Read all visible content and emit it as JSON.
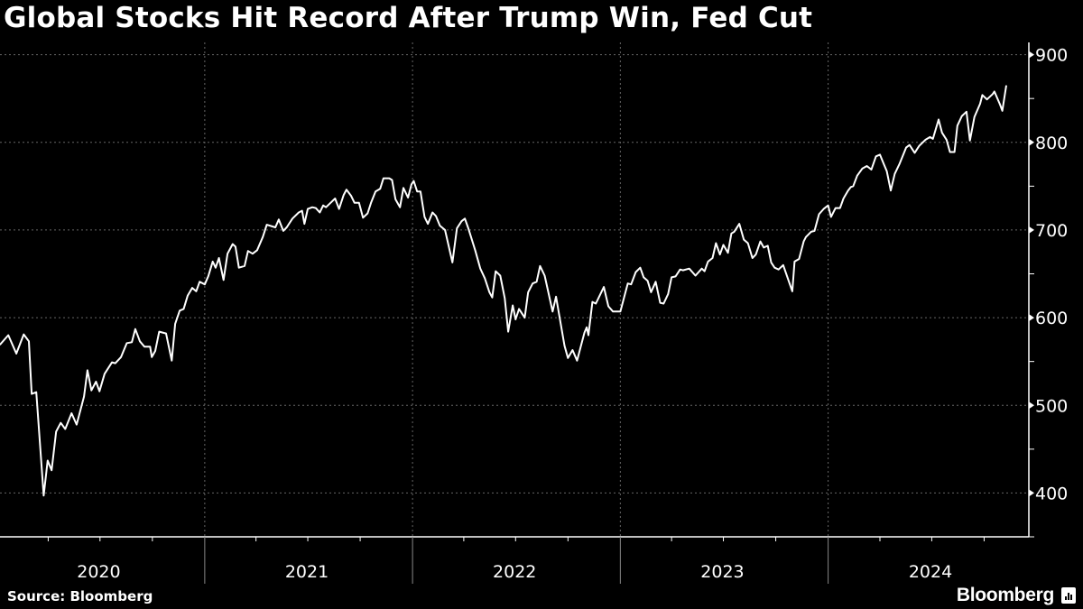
{
  "chart_data": {
    "type": "line",
    "title": "Global Stocks Hit Record After Trump Win, Fed Cut",
    "source": "Source: Bloomberg",
    "brand": "Bloomberg",
    "line_color": "#ffffff",
    "background_color": "#000000",
    "grid": true,
    "y_axis_position": "right",
    "ylim": [
      350,
      914
    ],
    "y_ticks": [
      400,
      500,
      600,
      700,
      800,
      900
    ],
    "x_tick_labels": [
      "2020",
      "2021",
      "2022",
      "2023",
      "2024"
    ],
    "xlim": [
      "2020-01-01",
      "2024-12-31"
    ],
    "series": [
      {
        "points": [
          [
            "2020-01-07",
            569
          ],
          [
            "2020-01-22",
            580
          ],
          [
            "2020-02-05",
            559
          ],
          [
            "2020-02-18",
            581
          ],
          [
            "2020-02-27",
            573
          ],
          [
            "2020-03-03",
            513
          ],
          [
            "2020-03-11",
            515
          ],
          [
            "2020-03-24",
            397
          ],
          [
            "2020-03-31",
            437
          ],
          [
            "2020-04-07",
            426
          ],
          [
            "2020-04-15",
            470
          ],
          [
            "2020-04-23",
            480
          ],
          [
            "2020-05-01",
            473
          ],
          [
            "2020-05-12",
            491
          ],
          [
            "2020-05-21",
            478
          ],
          [
            "2020-06-03",
            510
          ],
          [
            "2020-06-09",
            540
          ],
          [
            "2020-06-16",
            517
          ],
          [
            "2020-06-24",
            527
          ],
          [
            "2020-06-30",
            516
          ],
          [
            "2020-07-09",
            536
          ],
          [
            "2020-07-22",
            549
          ],
          [
            "2020-07-28",
            548
          ],
          [
            "2020-08-07",
            555
          ],
          [
            "2020-08-17",
            571
          ],
          [
            "2020-08-26",
            572
          ],
          [
            "2020-09-01",
            587
          ],
          [
            "2020-09-09",
            573
          ],
          [
            "2020-09-17",
            567
          ],
          [
            "2020-09-27",
            567
          ],
          [
            "2020-09-30",
            555
          ],
          [
            "2020-10-06",
            562
          ],
          [
            "2020-10-13",
            584
          ],
          [
            "2020-10-25",
            582
          ],
          [
            "2020-11-04",
            551
          ],
          [
            "2020-11-10",
            593
          ],
          [
            "2020-11-18",
            608
          ],
          [
            "2020-11-25",
            610
          ],
          [
            "2020-12-02",
            625
          ],
          [
            "2020-12-10",
            634
          ],
          [
            "2020-12-17",
            630
          ],
          [
            "2020-12-23",
            641
          ],
          [
            "2021-01-01",
            638
          ],
          [
            "2021-01-07",
            647
          ],
          [
            "2021-01-15",
            664
          ],
          [
            "2021-01-20",
            657
          ],
          [
            "2021-01-26",
            668
          ],
          [
            "2021-02-03",
            643
          ],
          [
            "2021-02-10",
            673
          ],
          [
            "2021-02-19",
            684
          ],
          [
            "2021-02-24",
            681
          ],
          [
            "2021-03-02",
            657
          ],
          [
            "2021-03-12",
            659
          ],
          [
            "2021-03-18",
            676
          ],
          [
            "2021-03-26",
            673
          ],
          [
            "2021-04-03",
            677
          ],
          [
            "2021-04-13",
            692
          ],
          [
            "2021-04-20",
            706
          ],
          [
            "2021-05-05",
            703
          ],
          [
            "2021-05-11",
            712
          ],
          [
            "2021-05-19",
            699
          ],
          [
            "2021-05-25",
            703
          ],
          [
            "2021-06-04",
            713
          ],
          [
            "2021-06-15",
            720
          ],
          [
            "2021-06-21",
            722
          ],
          [
            "2021-06-25",
            707
          ],
          [
            "2021-07-01",
            724
          ],
          [
            "2021-07-09",
            726
          ],
          [
            "2021-07-15",
            725
          ],
          [
            "2021-07-22",
            720
          ],
          [
            "2021-07-28",
            728
          ],
          [
            "2021-08-02",
            726
          ],
          [
            "2021-08-10",
            731
          ],
          [
            "2021-08-18",
            736
          ],
          [
            "2021-08-25",
            724
          ],
          [
            "2021-09-02",
            740
          ],
          [
            "2021-09-07",
            746
          ],
          [
            "2021-09-15",
            739
          ],
          [
            "2021-09-21",
            731
          ],
          [
            "2021-09-29",
            731
          ],
          [
            "2021-10-06",
            714
          ],
          [
            "2021-10-14",
            719
          ],
          [
            "2021-10-20",
            731
          ],
          [
            "2021-10-28",
            744
          ],
          [
            "2021-11-05",
            747
          ],
          [
            "2021-11-11",
            759
          ],
          [
            "2021-11-21",
            759
          ],
          [
            "2021-11-26",
            757
          ],
          [
            "2021-12-02",
            735
          ],
          [
            "2021-12-10",
            726
          ],
          [
            "2021-12-16",
            748
          ],
          [
            "2021-12-24",
            737
          ],
          [
            "2021-12-30",
            752
          ],
          [
            "2022-01-03",
            756
          ],
          [
            "2022-01-09",
            744
          ],
          [
            "2022-01-15",
            744
          ],
          [
            "2022-01-22",
            715
          ],
          [
            "2022-01-28",
            707
          ],
          [
            "2022-02-05",
            720
          ],
          [
            "2022-02-11",
            716
          ],
          [
            "2022-02-18",
            705
          ],
          [
            "2022-02-27",
            700
          ],
          [
            "2022-03-12",
            663
          ],
          [
            "2022-03-20",
            702
          ],
          [
            "2022-03-28",
            710
          ],
          [
            "2022-04-03",
            713
          ],
          [
            "2022-04-09",
            702
          ],
          [
            "2022-04-21",
            677
          ],
          [
            "2022-04-30",
            656
          ],
          [
            "2022-05-08",
            645
          ],
          [
            "2022-05-16",
            629
          ],
          [
            "2022-05-21",
            623
          ],
          [
            "2022-05-27",
            653
          ],
          [
            "2022-06-04",
            648
          ],
          [
            "2022-06-12",
            622
          ],
          [
            "2022-06-18",
            584
          ],
          [
            "2022-06-26",
            614
          ],
          [
            "2022-07-01",
            598
          ],
          [
            "2022-07-07",
            610
          ],
          [
            "2022-07-17",
            600
          ],
          [
            "2022-07-23",
            629
          ],
          [
            "2022-07-31",
            639
          ],
          [
            "2022-08-07",
            641
          ],
          [
            "2022-08-13",
            659
          ],
          [
            "2022-08-21",
            648
          ],
          [
            "2022-09-04",
            607
          ],
          [
            "2022-09-10",
            624
          ],
          [
            "2022-09-25",
            568
          ],
          [
            "2022-10-01",
            554
          ],
          [
            "2022-10-09",
            563
          ],
          [
            "2022-10-17",
            551
          ],
          [
            "2022-10-30",
            583
          ],
          [
            "2022-11-03",
            589
          ],
          [
            "2022-11-06",
            580
          ],
          [
            "2022-11-13",
            618
          ],
          [
            "2022-11-19",
            616
          ],
          [
            "2022-11-27",
            627
          ],
          [
            "2022-12-03",
            635
          ],
          [
            "2022-12-11",
            613
          ],
          [
            "2022-12-19",
            607
          ],
          [
            "2023-01-01",
            607
          ],
          [
            "2023-01-14",
            639
          ],
          [
            "2023-01-20",
            638
          ],
          [
            "2023-01-28",
            652
          ],
          [
            "2023-02-05",
            657
          ],
          [
            "2023-02-11",
            646
          ],
          [
            "2023-02-18",
            642
          ],
          [
            "2023-02-24",
            629
          ],
          [
            "2023-03-04",
            641
          ],
          [
            "2023-03-12",
            617
          ],
          [
            "2023-03-18",
            616
          ],
          [
            "2023-03-26",
            627
          ],
          [
            "2023-04-01",
            646
          ],
          [
            "2023-04-08",
            647
          ],
          [
            "2023-04-16",
            655
          ],
          [
            "2023-04-21",
            654
          ],
          [
            "2023-05-02",
            656
          ],
          [
            "2023-05-13",
            648
          ],
          [
            "2023-05-24",
            656
          ],
          [
            "2023-05-29",
            653
          ],
          [
            "2023-06-04",
            664
          ],
          [
            "2023-06-12",
            668
          ],
          [
            "2023-06-18",
            685
          ],
          [
            "2023-06-25",
            672
          ],
          [
            "2023-07-01",
            683
          ],
          [
            "2023-07-09",
            674
          ],
          [
            "2023-07-15",
            696
          ],
          [
            "2023-07-20",
            698
          ],
          [
            "2023-07-29",
            707
          ],
          [
            "2023-08-06",
            689
          ],
          [
            "2023-08-13",
            685
          ],
          [
            "2023-08-21",
            668
          ],
          [
            "2023-08-27",
            672
          ],
          [
            "2023-09-04",
            687
          ],
          [
            "2023-09-10",
            680
          ],
          [
            "2023-09-17",
            682
          ],
          [
            "2023-09-23",
            663
          ],
          [
            "2023-09-29",
            657
          ],
          [
            "2023-10-06",
            655
          ],
          [
            "2023-10-14",
            660
          ],
          [
            "2023-10-30",
            630
          ],
          [
            "2023-11-03",
            664
          ],
          [
            "2023-11-11",
            667
          ],
          [
            "2023-11-19",
            687
          ],
          [
            "2023-11-23",
            692
          ],
          [
            "2023-12-02",
            698
          ],
          [
            "2023-12-08",
            699
          ],
          [
            "2023-12-16",
            718
          ],
          [
            "2023-12-24",
            724
          ],
          [
            "2024-01-01",
            728
          ],
          [
            "2024-01-06",
            715
          ],
          [
            "2024-01-14",
            725
          ],
          [
            "2024-01-22",
            725
          ],
          [
            "2024-01-28",
            736
          ],
          [
            "2024-02-05",
            745
          ],
          [
            "2024-02-10",
            749
          ],
          [
            "2024-02-14",
            750
          ],
          [
            "2024-02-21",
            762
          ],
          [
            "2024-03-01",
            770
          ],
          [
            "2024-03-09",
            773
          ],
          [
            "2024-03-17",
            769
          ],
          [
            "2024-03-25",
            784
          ],
          [
            "2024-04-01",
            786
          ],
          [
            "2024-04-08",
            775
          ],
          [
            "2024-04-13",
            767
          ],
          [
            "2024-04-20",
            745
          ],
          [
            "2024-04-27",
            764
          ],
          [
            "2024-05-05",
            775
          ],
          [
            "2024-05-17",
            794
          ],
          [
            "2024-05-23",
            797
          ],
          [
            "2024-06-01",
            788
          ],
          [
            "2024-06-09",
            796
          ],
          [
            "2024-06-20",
            803
          ],
          [
            "2024-06-28",
            806
          ],
          [
            "2024-07-03",
            804
          ],
          [
            "2024-07-13",
            826
          ],
          [
            "2024-07-19",
            811
          ],
          [
            "2024-07-27",
            803
          ],
          [
            "2024-08-02",
            789
          ],
          [
            "2024-08-10",
            789
          ],
          [
            "2024-08-15",
            819
          ],
          [
            "2024-08-23",
            830
          ],
          [
            "2024-08-31",
            835
          ],
          [
            "2024-09-06",
            802
          ],
          [
            "2024-09-14",
            829
          ],
          [
            "2024-09-24",
            844
          ],
          [
            "2024-09-28",
            854
          ],
          [
            "2024-10-06",
            849
          ],
          [
            "2024-10-16",
            855
          ],
          [
            "2024-10-19",
            858
          ],
          [
            "2024-10-29",
            843
          ],
          [
            "2024-11-02",
            836
          ],
          [
            "2024-11-09",
            865
          ]
        ]
      }
    ]
  }
}
